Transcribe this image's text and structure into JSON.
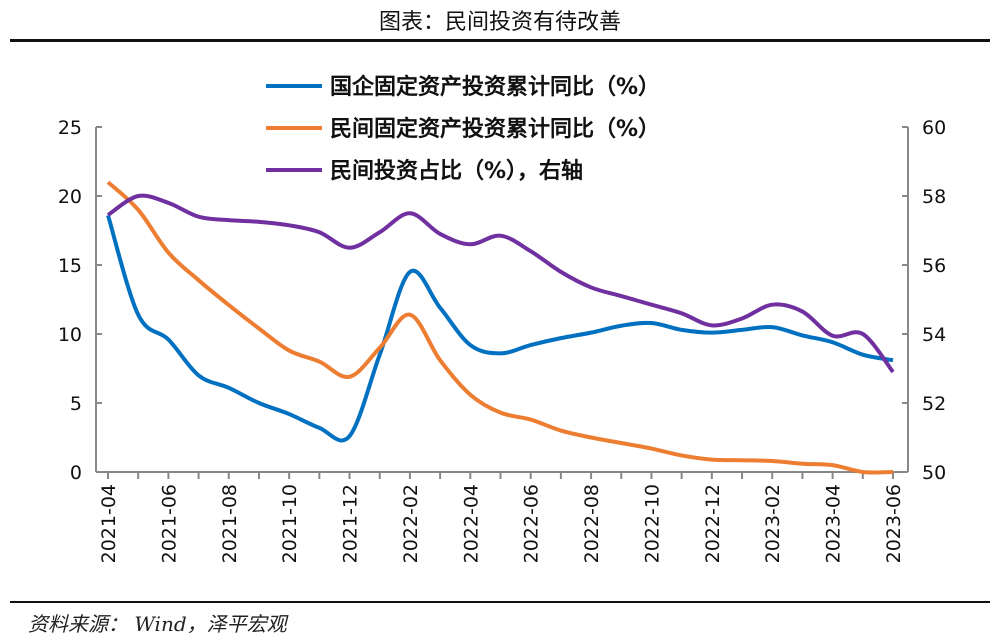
{
  "title": "图表：民间投资有待改善",
  "source": "资料来源： Wind，泽平宏观",
  "chart_data": {
    "type": "line",
    "categories": [
      "2021-04",
      "2021-05",
      "2021-06",
      "2021-07",
      "2021-08",
      "2021-09",
      "2021-10",
      "2021-11",
      "2021-12",
      "2022-01",
      "2022-02",
      "2022-03",
      "2022-04",
      "2022-05",
      "2022-06",
      "2022-07",
      "2022-08",
      "2022-09",
      "2022-10",
      "2022-11",
      "2022-12",
      "2023-01",
      "2023-02",
      "2023-03",
      "2023-04",
      "2023-05",
      "2023-06"
    ],
    "tick_labels": [
      "2021-04",
      "2021-06",
      "2021-08",
      "2021-10",
      "2021-12",
      "2022-02",
      "2022-04",
      "2022-06",
      "2022-08",
      "2022-10",
      "2022-12",
      "2023-02",
      "2023-04",
      "2023-06"
    ],
    "y_left": {
      "range": [
        0,
        25
      ],
      "ticks": [
        "0",
        "5",
        "10",
        "15",
        "20",
        "25"
      ]
    },
    "y_right": {
      "range": [
        50,
        60
      ],
      "ticks": [
        "50",
        "52",
        "54",
        "56",
        "58",
        "60"
      ]
    },
    "legend_position": "top",
    "grid": false,
    "series": [
      {
        "name": "国企固定资产投资累计同比（%）",
        "axis": "left",
        "color": "#0070C0",
        "values": [
          18.6,
          11.4,
          9.6,
          7.0,
          6.1,
          5.0,
          4.2,
          3.2,
          2.6,
          8.5,
          14.5,
          11.9,
          9.2,
          8.6,
          9.2,
          9.7,
          10.1,
          10.6,
          10.8,
          10.3,
          10.1,
          10.3,
          10.5,
          9.9,
          9.4,
          8.5,
          8.1
        ]
      },
      {
        "name": "民间固定资产投资累计同比（%）",
        "axis": "left",
        "color": "#ED7D31",
        "values": [
          21.0,
          19.0,
          15.9,
          13.9,
          12.1,
          10.4,
          8.8,
          8.0,
          6.9,
          9.0,
          11.4,
          8.1,
          5.6,
          4.3,
          3.8,
          3.0,
          2.5,
          2.1,
          1.7,
          1.2,
          0.9,
          0.85,
          0.8,
          0.6,
          0.5,
          -0.1,
          -0.2
        ]
      },
      {
        "name": "民间投资占比（%），右轴",
        "axis": "right",
        "color": "#7030A0",
        "values": [
          57.45,
          58.0,
          57.8,
          57.4,
          57.3,
          57.25,
          57.15,
          56.95,
          56.5,
          56.95,
          57.5,
          56.9,
          56.6,
          56.85,
          56.4,
          55.8,
          55.35,
          55.1,
          54.85,
          54.6,
          54.25,
          54.45,
          54.85,
          54.65,
          53.95,
          54.0,
          52.9
        ]
      }
    ]
  }
}
